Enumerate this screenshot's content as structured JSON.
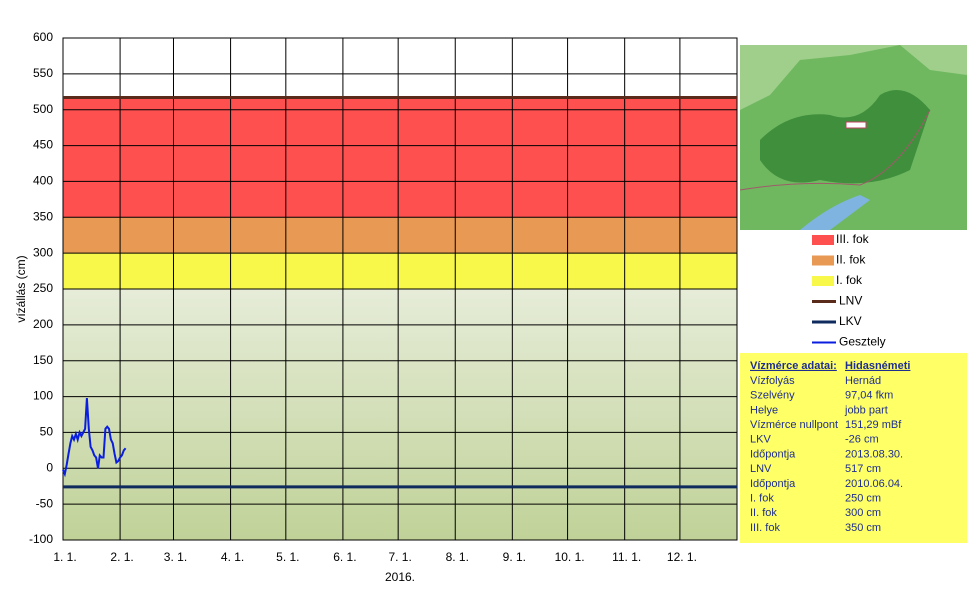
{
  "chart_data": {
    "type": "line",
    "y_label": "vízállás (cm)",
    "x_label": "2016.",
    "xlim": [
      0,
      366
    ],
    "xticks": [
      {
        "value": 0,
        "label": "1. 1."
      },
      {
        "value": 31,
        "label": "2. 1."
      },
      {
        "value": 60,
        "label": "3. 1."
      },
      {
        "value": 91,
        "label": "4. 1."
      },
      {
        "value": 121,
        "label": "5. 1."
      },
      {
        "value": 152,
        "label": "6. 1."
      },
      {
        "value": 182,
        "label": "7. 1."
      },
      {
        "value": 213,
        "label": "8. 1."
      },
      {
        "value": 244,
        "label": "9. 1."
      },
      {
        "value": 274,
        "label": "10. 1."
      },
      {
        "value": 305,
        "label": "11. 1."
      },
      {
        "value": 335,
        "label": "12. 1."
      }
    ],
    "ylim": [
      -100,
      600
    ],
    "yticks": [
      -100,
      -50,
      0,
      50,
      100,
      150,
      200,
      250,
      300,
      350,
      400,
      450,
      500,
      550,
      600
    ],
    "grid": true,
    "bands": [
      {
        "name": "III. fok",
        "color": "#ff5050",
        "from": 350,
        "to": 517
      },
      {
        "name": "II. fok",
        "color": "#e89a54",
        "from": 300,
        "to": 350
      },
      {
        "name": "I. fok",
        "color": "#f8f84a",
        "from": 250,
        "to": 300
      }
    ],
    "hlines": [
      {
        "name": "LNV",
        "color": "#5a2a1a",
        "value": 517
      },
      {
        "name": "LKV",
        "color": "#0f2a5c",
        "value": -26
      }
    ],
    "series": [
      {
        "name": "Gesztely",
        "color": "#0a1ee0",
        "x": [
          0,
          1,
          2,
          3,
          4,
          5,
          6,
          7,
          8,
          9,
          10,
          11,
          12,
          13,
          14,
          15,
          16,
          17,
          18,
          19,
          20,
          21,
          22,
          23,
          24,
          25,
          26,
          27,
          28,
          29,
          30,
          31,
          32,
          33,
          34
        ],
        "values": [
          -2,
          -8,
          5,
          20,
          35,
          45,
          40,
          48,
          40,
          50,
          45,
          50,
          55,
          98,
          55,
          30,
          25,
          18,
          15,
          0,
          18,
          15,
          15,
          55,
          58,
          55,
          40,
          35,
          20,
          8,
          10,
          15,
          18,
          25,
          28
        ]
      }
    ]
  },
  "info_table": {
    "header": [
      "Vízmérce adatai:",
      "Hidasnémeti"
    ],
    "rows": [
      [
        "Vízfolyás",
        "Hernád"
      ],
      [
        "Szelvény",
        "97,04 fkm"
      ],
      [
        "Helye",
        "jobb part"
      ],
      [
        "Vízmérce nullpont",
        "151,29 mBf"
      ],
      [
        "LKV",
        "-26 cm"
      ],
      [
        "Időpontja",
        "2013.08.30."
      ],
      [
        "LNV",
        "517 cm"
      ],
      [
        "Időpontja",
        "2010.06.04."
      ],
      [
        "I. fok",
        "250 cm"
      ],
      [
        "II. fok",
        "300 cm"
      ],
      [
        "III. fok",
        "350 cm"
      ]
    ]
  }
}
